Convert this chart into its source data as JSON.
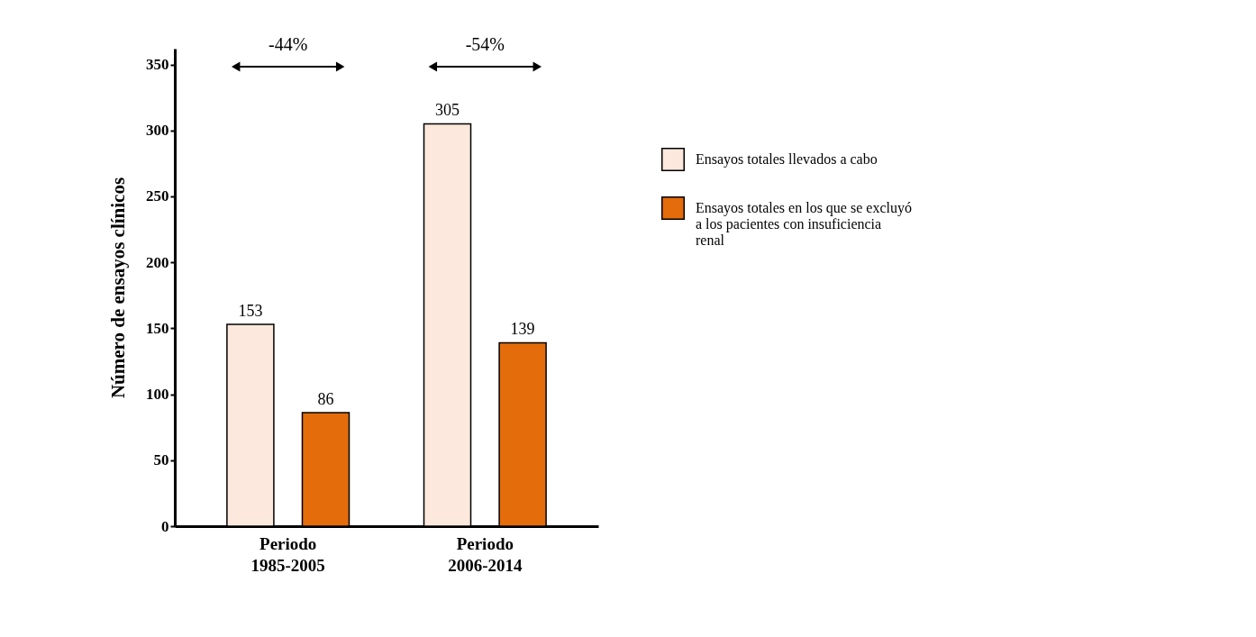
{
  "chart_data": {
    "type": "bar",
    "ylabel": "Número de ensayos clínicos",
    "categories": [
      "Periodo\n1985-2005",
      "Periodo\n2006-2014"
    ],
    "series": [
      {
        "name": "Ensayos totales llevados a cabo",
        "color": "#fce8dc",
        "values": [
          153,
          305
        ]
      },
      {
        "name": "Ensayos totales en los que se excluyó a los pacientes con insuficiencia renal",
        "color": "#e46c0a",
        "values": [
          86,
          139
        ]
      }
    ],
    "ylim": [
      0,
      362
    ],
    "yticks": [
      0,
      50,
      100,
      150,
      200,
      250,
      300,
      350
    ],
    "data_labels": true,
    "grid": false,
    "legend": "right",
    "annotations": [
      "-44%",
      "-54%"
    ]
  }
}
